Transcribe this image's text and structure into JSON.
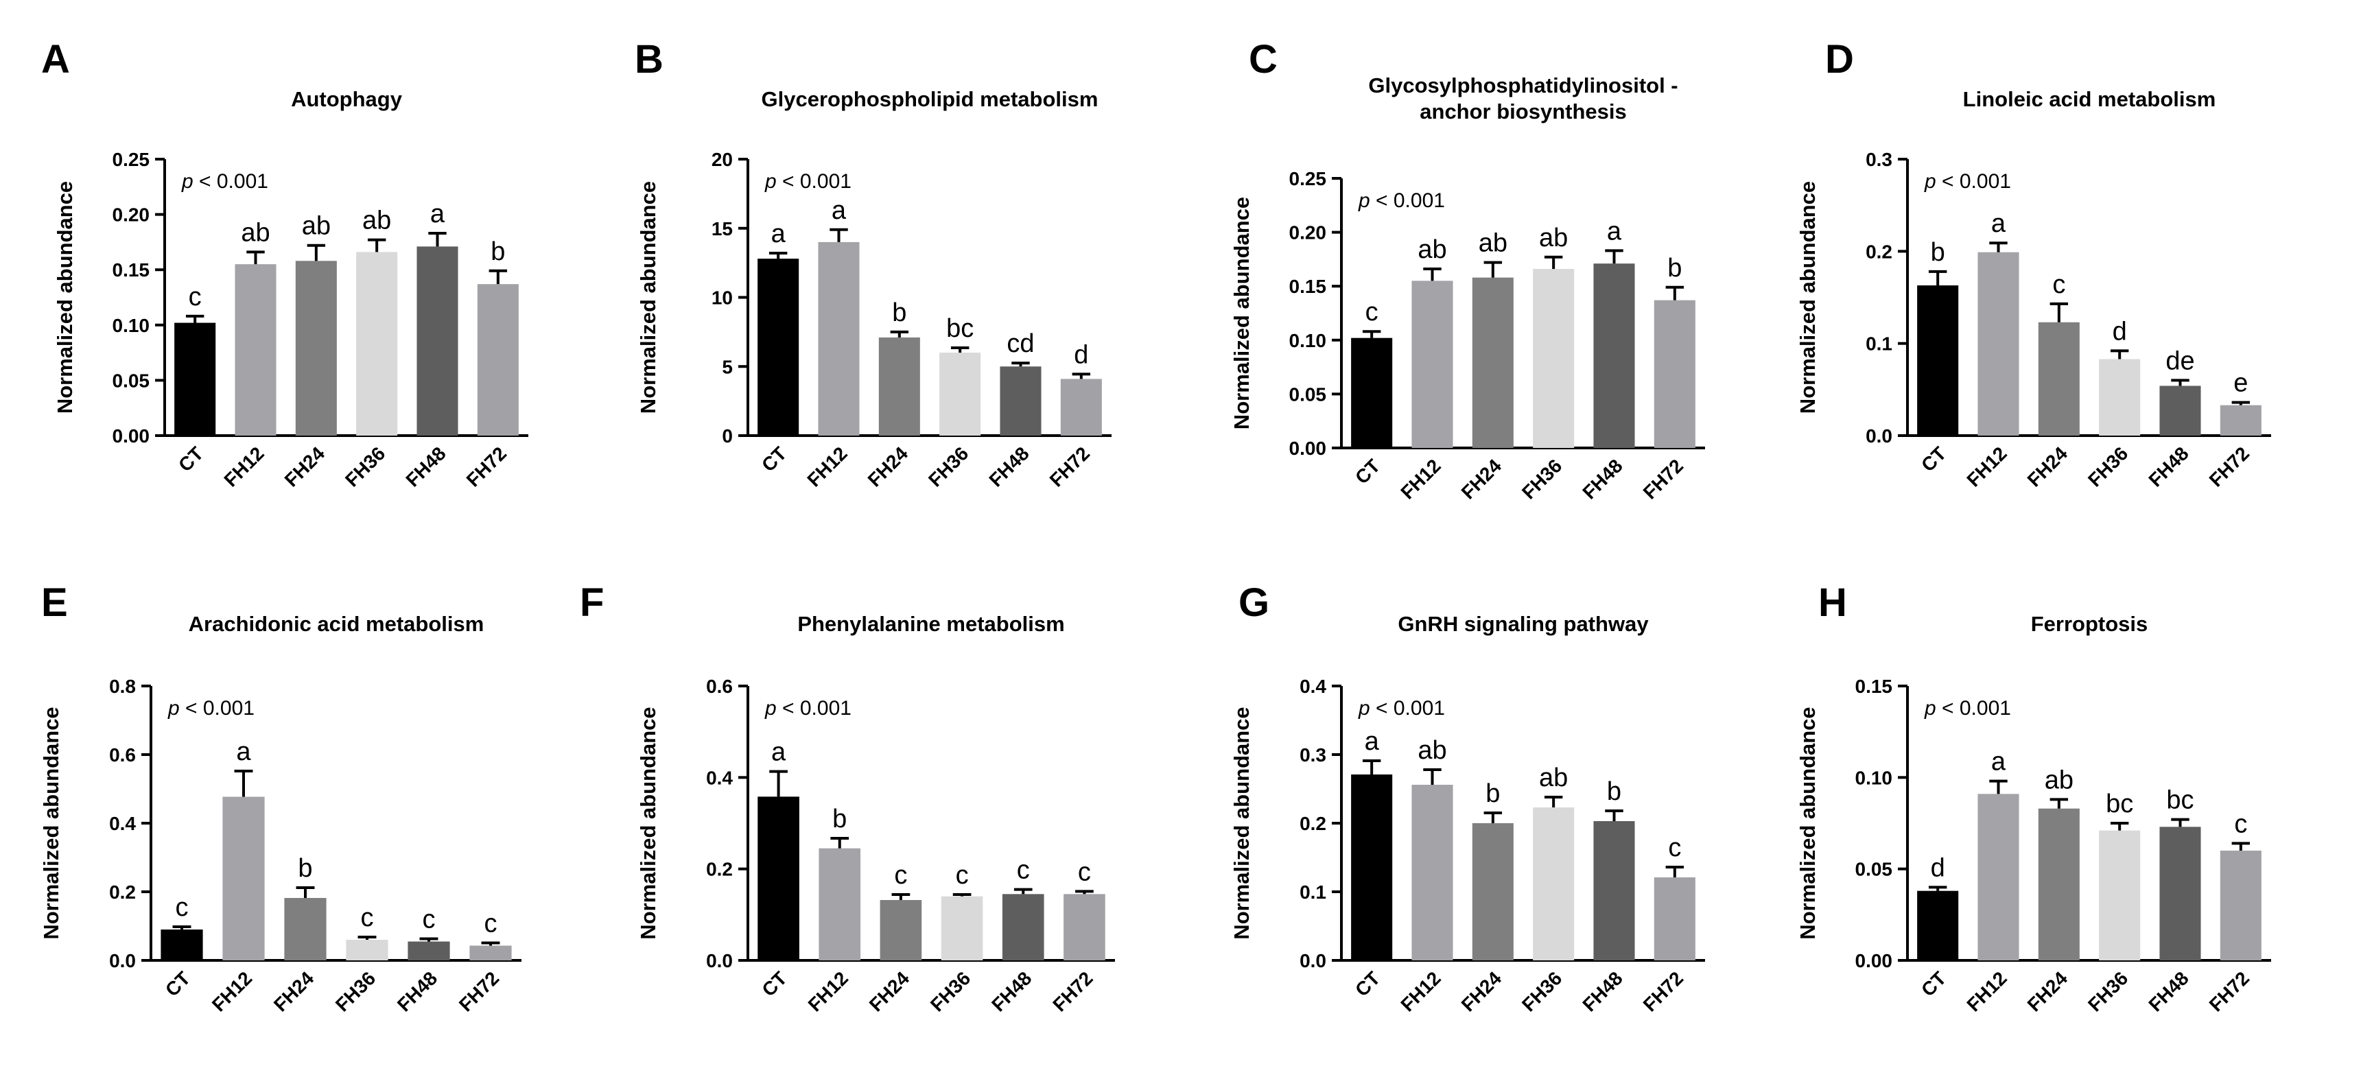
{
  "figure": {
    "ylabel": "Normalized abundance"
  },
  "chart_data": [
    {
      "type": "bar",
      "panel": "A",
      "title": [
        "Autophagy"
      ],
      "xlabel": "",
      "ylabel": "Normalized abundance",
      "pvalue_label": "p < 0.001",
      "categories": [
        "CT",
        "FH12",
        "FH24",
        "FH36",
        "FH48",
        "FH72"
      ],
      "values": [
        0.102,
        0.155,
        0.158,
        0.166,
        0.171,
        0.137
      ],
      "errors": [
        0.006,
        0.011,
        0.014,
        0.011,
        0.012,
        0.012
      ],
      "significance": [
        "c",
        "ab",
        "ab",
        "ab",
        "a",
        "b"
      ],
      "yticks": [
        "0.00",
        "0.05",
        "0.10",
        "0.15",
        "0.20",
        "0.25"
      ],
      "ylim": [
        0,
        0.25
      ]
    },
    {
      "type": "bar",
      "panel": "B",
      "title": [
        "Glycerophospholipid metabolism"
      ],
      "xlabel": "",
      "ylabel": "Normalized abundance",
      "pvalue_label": "p < 0.001",
      "categories": [
        "CT",
        "FH12",
        "FH24",
        "FH36",
        "FH48",
        "FH72"
      ],
      "values": [
        12.8,
        14.0,
        7.1,
        6.0,
        5.0,
        4.1
      ],
      "errors": [
        0.4,
        0.9,
        0.4,
        0.35,
        0.25,
        0.35
      ],
      "significance": [
        "a",
        "a",
        "b",
        "bc",
        "cd",
        "d"
      ],
      "yticks": [
        "0",
        "5",
        "10",
        "15",
        "20"
      ],
      "ylim": [
        0,
        20
      ]
    },
    {
      "type": "bar",
      "panel": "C",
      "title": [
        "Glycosylphosphatidylinositol -",
        "anchor biosynthesis"
      ],
      "xlabel": "",
      "ylabel": "Normalized abundance",
      "pvalue_label": "p < 0.001",
      "categories": [
        "CT",
        "FH12",
        "FH24",
        "FH36",
        "FH48",
        "FH72"
      ],
      "values": [
        0.102,
        0.155,
        0.158,
        0.166,
        0.171,
        0.137
      ],
      "errors": [
        0.006,
        0.011,
        0.014,
        0.011,
        0.012,
        0.012
      ],
      "significance": [
        "c",
        "ab",
        "ab",
        "ab",
        "a",
        "b"
      ],
      "yticks": [
        "0.00",
        "0.05",
        "0.10",
        "0.15",
        "0.20",
        "0.25"
      ],
      "ylim": [
        0,
        0.25
      ]
    },
    {
      "type": "bar",
      "panel": "D",
      "title": [
        "Linoleic acid metabolism"
      ],
      "xlabel": "",
      "ylabel": "Normalized abundance",
      "pvalue_label": "p < 0.001",
      "categories": [
        "CT",
        "FH12",
        "FH24",
        "FH36",
        "FH48",
        "FH72"
      ],
      "values": [
        0.163,
        0.199,
        0.123,
        0.083,
        0.054,
        0.033
      ],
      "errors": [
        0.015,
        0.01,
        0.02,
        0.009,
        0.006,
        0.003
      ],
      "significance": [
        "b",
        "a",
        "c",
        "d",
        "de",
        "e"
      ],
      "yticks": [
        "0.0",
        "0.1",
        "0.2",
        "0.3"
      ],
      "ylim": [
        0,
        0.3
      ]
    },
    {
      "type": "bar",
      "panel": "E",
      "title": [
        "Arachidonic acid metabolism"
      ],
      "xlabel": "",
      "ylabel": "Normalized abundance",
      "pvalue_label": "p < 0.001",
      "categories": [
        "CT",
        "FH12",
        "FH24",
        "FH36",
        "FH48",
        "FH72"
      ],
      "values": [
        0.09,
        0.477,
        0.182,
        0.06,
        0.055,
        0.043
      ],
      "errors": [
        0.008,
        0.075,
        0.03,
        0.008,
        0.008,
        0.008
      ],
      "significance": [
        "c",
        "a",
        "b",
        "c",
        "c",
        "c"
      ],
      "yticks": [
        "0.0",
        "0.2",
        "0.4",
        "0.6",
        "0.8"
      ],
      "ylim": [
        0,
        0.8
      ]
    },
    {
      "type": "bar",
      "panel": "F",
      "title": [
        "Phenylalanine metabolism"
      ],
      "xlabel": "",
      "ylabel": "Normalized abundance",
      "pvalue_label": "p < 0.001",
      "categories": [
        "CT",
        "FH12",
        "FH24",
        "FH36",
        "FH48",
        "FH72"
      ],
      "values": [
        0.358,
        0.245,
        0.132,
        0.14,
        0.145,
        0.145
      ],
      "errors": [
        0.055,
        0.022,
        0.012,
        0.004,
        0.01,
        0.006
      ],
      "significance": [
        "a",
        "b",
        "c",
        "c",
        "c",
        "c"
      ],
      "yticks": [
        "0.0",
        "0.2",
        "0.4",
        "0.6"
      ],
      "ylim": [
        0,
        0.6
      ]
    },
    {
      "type": "bar",
      "panel": "G",
      "title": [
        "GnRH signaling pathway"
      ],
      "xlabel": "",
      "ylabel": "Normalized abundance",
      "pvalue_label": "p < 0.001",
      "categories": [
        "CT",
        "FH12",
        "FH24",
        "FH36",
        "FH48",
        "FH72"
      ],
      "values": [
        0.271,
        0.256,
        0.2,
        0.223,
        0.203,
        0.121
      ],
      "errors": [
        0.02,
        0.022,
        0.015,
        0.015,
        0.015,
        0.015
      ],
      "significance": [
        "a",
        "ab",
        "b",
        "ab",
        "b",
        "c"
      ],
      "yticks": [
        "0.0",
        "0.1",
        "0.2",
        "0.3",
        "0.4"
      ],
      "ylim": [
        0,
        0.4
      ]
    },
    {
      "type": "bar",
      "panel": "H",
      "title": [
        "Ferroptosis"
      ],
      "xlabel": "",
      "ylabel": "Normalized abundance",
      "pvalue_label": "p < 0.001",
      "categories": [
        "CT",
        "FH12",
        "FH24",
        "FH36",
        "FH48",
        "FH72"
      ],
      "values": [
        0.038,
        0.091,
        0.083,
        0.071,
        0.073,
        0.06
      ],
      "errors": [
        0.002,
        0.007,
        0.005,
        0.004,
        0.004,
        0.004
      ],
      "significance": [
        "d",
        "a",
        "ab",
        "bc",
        "bc",
        "c"
      ],
      "yticks": [
        "0.00",
        "0.05",
        "0.10",
        "0.15"
      ],
      "ylim": [
        0,
        0.15
      ]
    }
  ],
  "colors": {
    "bars": [
      "#000000",
      "#a3a3a8",
      "#7f7f7f",
      "#d9d9d9",
      "#5e5e5e",
      "#a2a2a6"
    ],
    "axis": "#000000",
    "background": "#ffffff"
  }
}
